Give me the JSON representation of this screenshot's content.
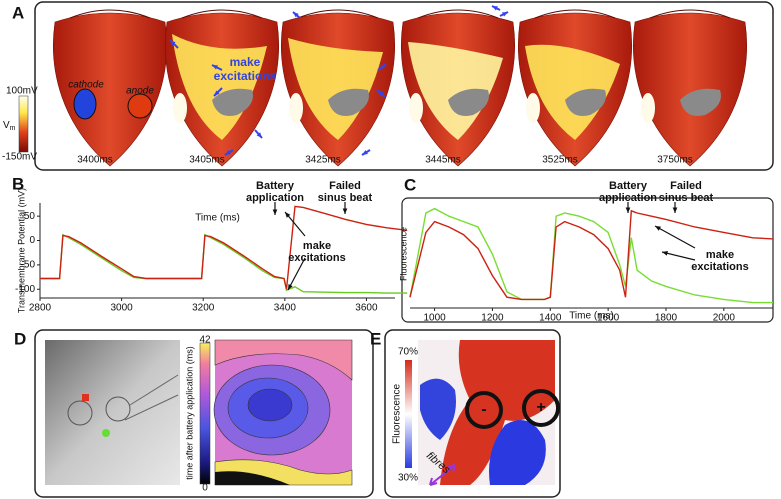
{
  "panel_labels": [
    "A",
    "B",
    "C",
    "D",
    "E"
  ],
  "panel_a": {
    "times": [
      "3400ms",
      "3405ms",
      "3425ms",
      "3445ms",
      "3525ms",
      "3750ms"
    ],
    "electrodes": [
      "cathode",
      "anode"
    ],
    "annotation": [
      "make",
      "excitations"
    ],
    "colorbar": {
      "max": "100mV",
      "label": "V",
      "label_sub": "m",
      "min": "-150mV"
    }
  },
  "panel_d": {
    "colorbar": {
      "max": "42",
      "min": "0",
      "label": "time after battery application (ms)"
    }
  },
  "panel_e": {
    "colorbar": {
      "max": "70%",
      "min": "30%",
      "label": "Fluorescence"
    },
    "fibres": "fibres",
    "signs": [
      "-",
      "+"
    ]
  },
  "chart_data": [
    {
      "type": "line",
      "ylabel": "Transmembrane Potential (mV)",
      "xlabel": "Time (ms)",
      "x": [
        2800,
        2848,
        2856,
        2870,
        2900,
        2950,
        3000,
        3030,
        3060,
        3196,
        3204,
        3218,
        3250,
        3300,
        3345,
        3375,
        3398,
        3404,
        3425,
        3445,
        3500,
        3550,
        3600,
        3650,
        3700
      ],
      "series": [
        {
          "color": "#66cc22",
          "values": [
            -78,
            -78,
            12,
            6,
            -8,
            -35,
            -62,
            -76,
            -78,
            -78,
            12,
            6,
            -8,
            -35,
            -62,
            -76,
            -78,
            -102,
            -95,
            -105,
            -106,
            -107,
            -107,
            -108,
            -108
          ]
        },
        {
          "color": "#cc2211",
          "values": [
            -78,
            -78,
            10,
            8,
            -5,
            -32,
            -58,
            -74,
            -78,
            -78,
            10,
            8,
            -5,
            -32,
            -58,
            -74,
            -78,
            -100,
            70,
            68,
            55,
            43,
            33,
            26,
            21
          ]
        }
      ],
      "xlim": [
        2800,
        3670
      ],
      "ylim": [
        -118,
        77
      ],
      "xticks": [
        2800,
        3000,
        3200,
        3400,
        3600
      ],
      "yticks": [
        50,
        0,
        -50,
        -100
      ],
      "annotations": [
        {
          "lines": [
            "Battery",
            "application"
          ]
        },
        {
          "lines": [
            "Failed",
            "sinus beat"
          ]
        },
        {
          "lines": [
            "make",
            "excitations"
          ]
        }
      ]
    },
    {
      "type": "line",
      "ylabel": "Fluorescence",
      "xlabel": "Time (ms)",
      "x": [
        915,
        970,
        1000,
        1050,
        1100,
        1150,
        1200,
        1250,
        1300,
        1380,
        1400,
        1420,
        1450,
        1500,
        1550,
        1600,
        1640,
        1660,
        1680,
        1700,
        1750,
        1800,
        1900,
        2000,
        2100,
        2170
      ],
      "series": [
        {
          "color": "#77dd33",
          "values": [
            10,
            88,
            92,
            85,
            80,
            75,
            50,
            15,
            8,
            8,
            10,
            85,
            88,
            85,
            80,
            70,
            40,
            20,
            65,
            35,
            25,
            20,
            12,
            8,
            5,
            5
          ]
        },
        {
          "color": "#cc2211",
          "values": [
            10,
            70,
            80,
            75,
            68,
            55,
            30,
            10,
            8,
            8,
            10,
            75,
            80,
            75,
            68,
            55,
            35,
            10,
            90,
            88,
            85,
            82,
            75,
            70,
            65,
            64
          ]
        }
      ],
      "xlim": [
        915,
        2170
      ],
      "ylim": [
        0,
        100
      ],
      "xticks": [
        1000,
        1200,
        1400,
        1600,
        1800,
        2000
      ],
      "annotations": [
        {
          "lines": [
            "Battery",
            "application"
          ]
        },
        {
          "lines": [
            "Failed",
            "sinus beat"
          ]
        },
        {
          "lines": [
            "make",
            "excitations"
          ]
        }
      ]
    }
  ]
}
